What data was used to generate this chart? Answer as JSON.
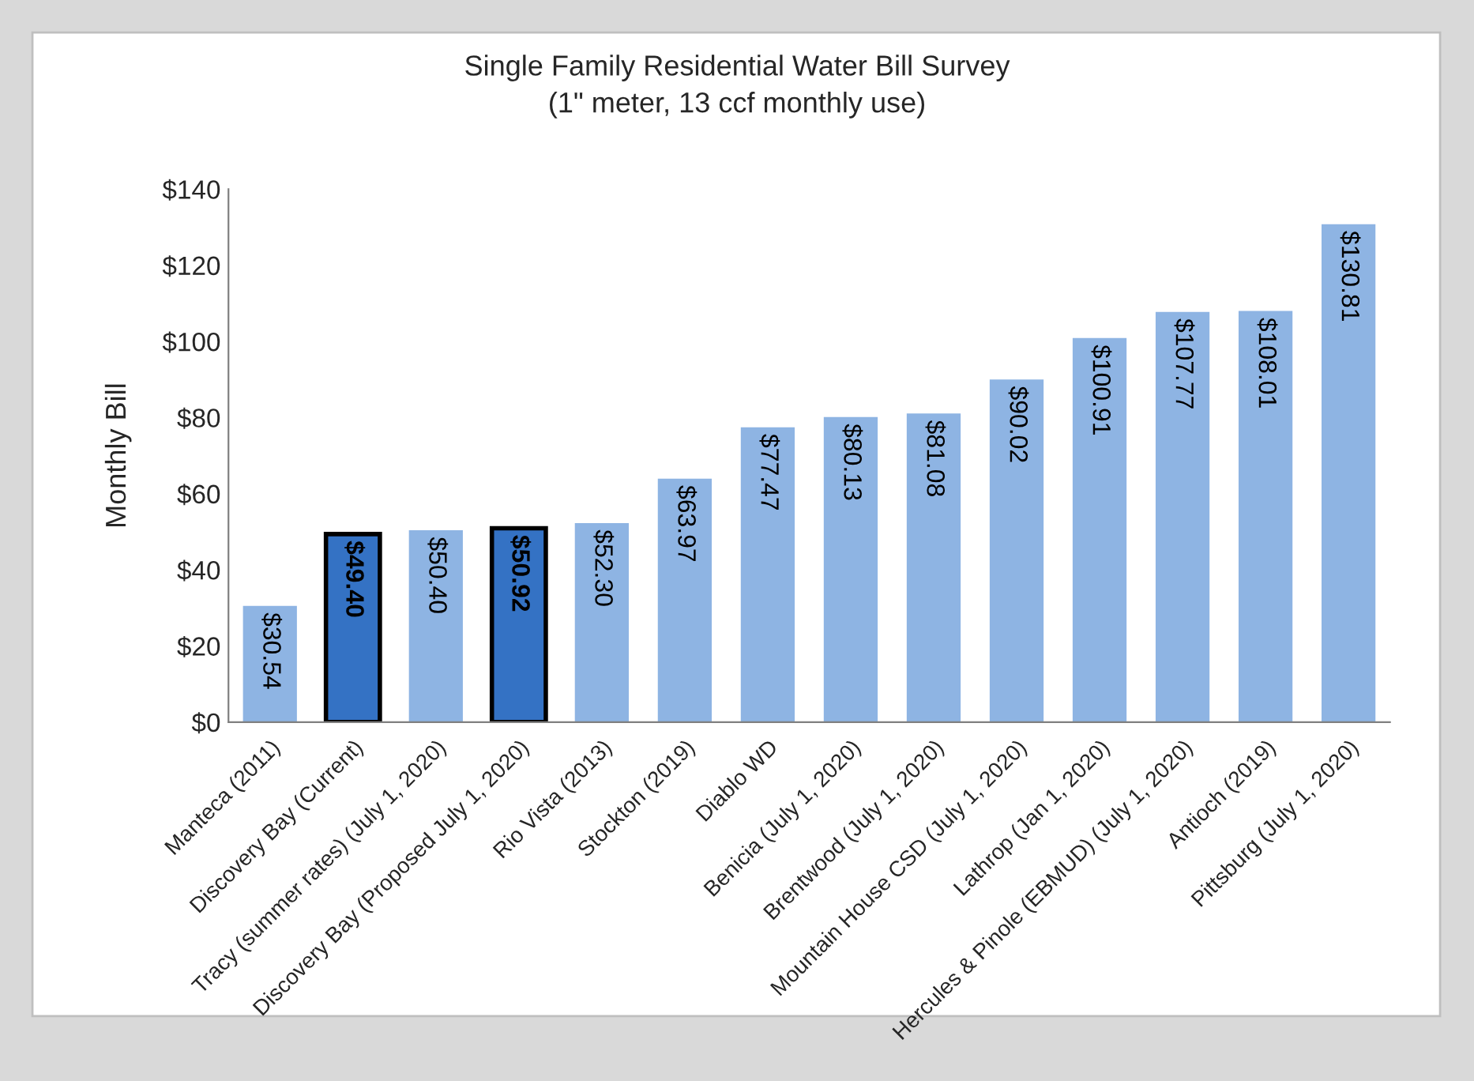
{
  "chart_data": {
    "type": "bar",
    "title": "Single Family Residential Water Bill Survey\n(1\" meter, 13 ccf monthly use)",
    "ylabel": "Monthly Bill",
    "categories": [
      "Manteca (2011)",
      "Discovery Bay (Current)",
      "Tracy (summer rates) (July 1, 2020)",
      "Discovery Bay (Proposed July 1, 2020)",
      "Rio Vista (2013)",
      "Stockton (2019)",
      "Diablo WD",
      "Benicia (July 1, 2020)",
      "Brentwood (July 1, 2020)",
      "Mountain House CSD (July 1, 2020)",
      "Lathrop (Jan 1, 2020)",
      "Hercules & Pinole (EBMUD) (July 1, 2020)",
      "Antioch (2019)",
      "Pittsburg (July 1, 2020)"
    ],
    "series": [
      {
        "color": "#8eb4e3",
        "values": [
          30.54,
          49.4,
          50.4,
          50.92,
          52.3,
          63.97,
          77.47,
          80.13,
          81.08,
          90.02,
          100.91,
          107.77,
          108.01,
          130.81
        ],
        "colors": [
          "#8eb4e3",
          "#3472c4",
          "#8eb4e3",
          "#3472c4",
          "#8eb4e3",
          "#8eb4e3",
          "#8eb4e3",
          "#8eb4e3",
          "#8eb4e3",
          "#8eb4e3",
          "#8eb4e3",
          "#8eb4e3",
          "#8eb4e3",
          "#8eb4e3"
        ],
        "value_labels": [
          "$30.54",
          "$49.40",
          "$50.40",
          "$50.92",
          "$52.30",
          "$63.97",
          "$77.47",
          "$80.13",
          "$81.08",
          "$90.02",
          "$100.91",
          "$107.77",
          "$108.01",
          "$130.81"
        ]
      }
    ],
    "ylim": [
      0,
      140
    ],
    "yticks": [
      {
        "value": 0,
        "label": "$0"
      },
      {
        "value": 20,
        "label": "$20"
      },
      {
        "value": 40,
        "label": "$40"
      },
      {
        "value": 60,
        "label": "$60"
      },
      {
        "value": 80,
        "label": "$80"
      },
      {
        "value": 100,
        "label": "$100"
      },
      {
        "value": 120,
        "label": "$120"
      },
      {
        "value": 140,
        "label": "$140"
      }
    ],
    "grid": false,
    "legend": false
  }
}
